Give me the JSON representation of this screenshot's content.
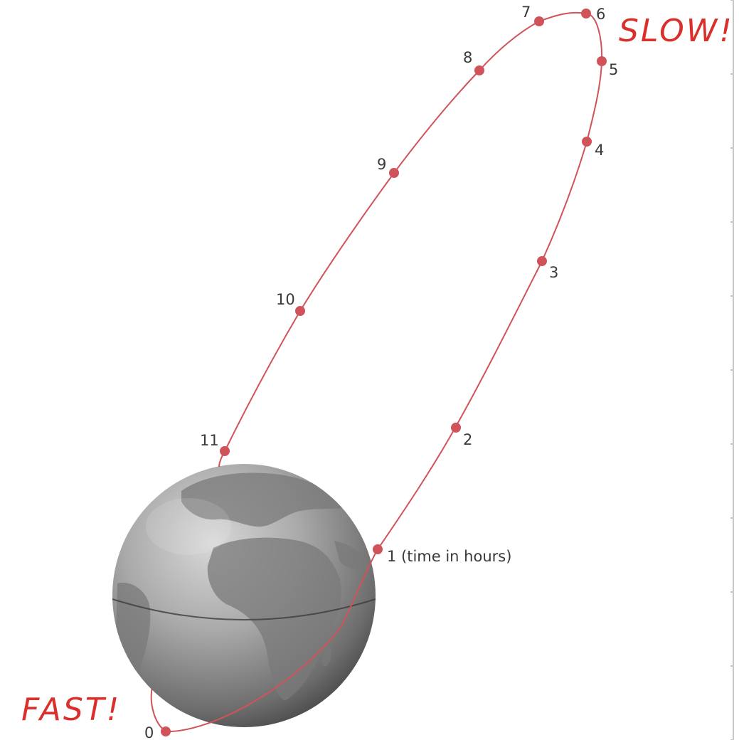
{
  "diagram": {
    "orbit_color": "#d1535a",
    "note_color": "#d9302b",
    "points": [
      {
        "hour": "0"
      },
      {
        "hour": "1 (time in hours)"
      },
      {
        "hour": "2"
      },
      {
        "hour": "3"
      },
      {
        "hour": "4"
      },
      {
        "hour": "5"
      },
      {
        "hour": "6"
      },
      {
        "hour": "7"
      },
      {
        "hour": "8"
      },
      {
        "hour": "9"
      },
      {
        "hour": "10"
      },
      {
        "hour": "11"
      }
    ],
    "annotations": {
      "slow": "SLOW!",
      "fast": "FAST!"
    },
    "earth_icon": "globe-icon"
  }
}
